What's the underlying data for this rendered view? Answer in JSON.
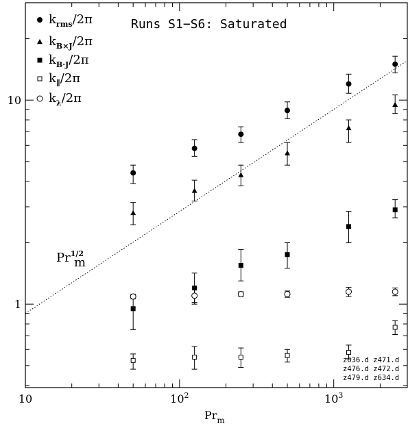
{
  "chart_data": {
    "type": "scatter",
    "title": "Runs S1−S6: Saturated",
    "xlabel": "Pr",
    "xlabel_sub": "m",
    "ylabel": "",
    "xscale": "log",
    "yscale": "log",
    "xlim": [
      10,
      3000
    ],
    "ylim": [
      0.39,
      30
    ],
    "x_ticks": [
      10,
      100,
      1000
    ],
    "x_tick_labels": [
      {
        "base": "10",
        "exp": ""
      },
      {
        "base": "10",
        "exp": "2"
      },
      {
        "base": "10",
        "exp": "3"
      }
    ],
    "y_ticks": [
      1,
      10
    ],
    "y_tick_labels": [
      "1",
      "10"
    ],
    "legend_position": "top-left",
    "series": [
      {
        "name": "k",
        "sub": "rms",
        "suffix": "/2π",
        "marker": "filled-circle",
        "x": [
          50,
          125,
          250,
          500,
          1250,
          2500
        ],
        "y": [
          4.4,
          5.8,
          6.8,
          8.9,
          12.0,
          15.0
        ],
        "err_low": [
          3.9,
          5.3,
          6.2,
          8.1,
          10.8,
          13.6
        ],
        "err_high": [
          4.8,
          6.4,
          7.4,
          9.8,
          13.4,
          16.4
        ]
      },
      {
        "name": "k",
        "sub": "B×J",
        "suffix": "/2π",
        "marker": "filled-triangle",
        "x": [
          50,
          125,
          250,
          500,
          1250,
          2500
        ],
        "y": [
          2.8,
          3.6,
          4.3,
          5.5,
          7.3,
          9.5
        ],
        "err_low": [
          2.45,
          3.2,
          3.8,
          4.8,
          6.2,
          8.6
        ],
        "err_high": [
          3.15,
          4.05,
          4.8,
          6.2,
          8.0,
          10.6
        ]
      },
      {
        "name": "k",
        "sub": "B·J",
        "suffix": "/2π",
        "marker": "filled-square",
        "x": [
          50,
          125,
          250,
          500,
          1250,
          2500
        ],
        "y": [
          0.95,
          1.2,
          1.55,
          1.75,
          2.4,
          2.9
        ],
        "err_low": [
          0.75,
          1.0,
          1.3,
          1.5,
          2.0,
          2.65
        ],
        "err_high": [
          1.1,
          1.42,
          1.85,
          2.0,
          2.85,
          3.25
        ]
      },
      {
        "name": "k",
        "sub": "∥",
        "suffix": "/2π",
        "marker": "open-square",
        "x": [
          50,
          125,
          250,
          500,
          1250,
          2500
        ],
        "y": [
          0.53,
          0.55,
          0.55,
          0.56,
          0.58,
          0.77
        ],
        "err_low": [
          0.48,
          0.48,
          0.49,
          0.52,
          0.54,
          0.71
        ],
        "err_high": [
          0.57,
          0.62,
          0.61,
          0.6,
          0.63,
          0.83
        ]
      },
      {
        "name": "k",
        "sub": "λ",
        "suffix": "/2π",
        "marker": "open-circle",
        "x": [
          50,
          125,
          250,
          500,
          1250,
          2500
        ],
        "y": [
          1.09,
          1.1,
          1.12,
          1.12,
          1.15,
          1.15
        ],
        "err_low": [
          1.06,
          1.02,
          1.09,
          1.08,
          1.09,
          1.1
        ],
        "err_high": [
          1.12,
          1.2,
          1.15,
          1.16,
          1.21,
          1.2
        ]
      }
    ],
    "reference_line": {
      "label_base": "Pr",
      "label_sub": "m",
      "label_exp": "1/2",
      "style": "dotted",
      "x": [
        10,
        3000
      ],
      "y": [
        0.9,
        15.6
      ]
    },
    "annotations": [
      "z636.d  z471.d",
      "z476.d  z472.d",
      "z479.d  z634.d"
    ]
  }
}
